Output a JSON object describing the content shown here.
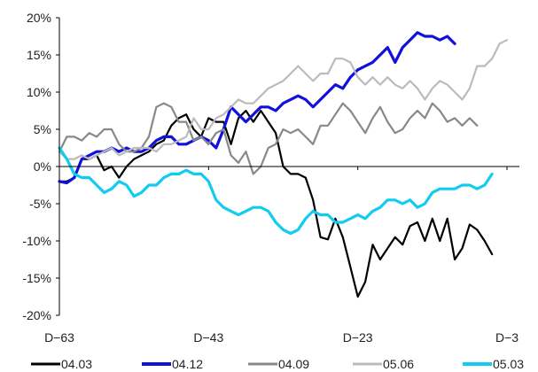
{
  "chart_data": {
    "type": "line",
    "title": "",
    "xlabel": "",
    "ylabel": "",
    "x_range": [
      -63,
      -3
    ],
    "x_ticks": [
      {
        "value": -63,
        "label": "D−63"
      },
      {
        "value": -43,
        "label": "D−43"
      },
      {
        "value": -23,
        "label": "D−23"
      },
      {
        "value": -3,
        "label": "D−3"
      }
    ],
    "ylim": [
      -20,
      20
    ],
    "y_ticks": [
      {
        "value": 20,
        "label": "20%"
      },
      {
        "value": 15,
        "label": "15%"
      },
      {
        "value": 10,
        "label": "10%"
      },
      {
        "value": 5,
        "label": "5%"
      },
      {
        "value": 0,
        "label": "0%"
      },
      {
        "value": -5,
        "label": "-5%"
      },
      {
        "value": -10,
        "label": "-10%"
      },
      {
        "value": -15,
        "label": "-15%"
      },
      {
        "value": -20,
        "label": "-20%"
      }
    ],
    "grid": false,
    "legend_position": "bottom",
    "series": [
      {
        "name": "04.03",
        "color": "#000000",
        "x": [
          -63,
          -62,
          -61,
          -60,
          -59,
          -58,
          -57,
          -56,
          -55,
          -54,
          -53,
          -52,
          -51,
          -50,
          -49,
          -48,
          -47,
          -46,
          -45,
          -44,
          -43,
          -42,
          -41,
          -40,
          -39,
          -38,
          -37,
          -36,
          -35,
          -34,
          -33,
          -32,
          -31,
          -30,
          -29,
          -28,
          -27,
          -26,
          -25,
          -24,
          -23,
          -22,
          -21,
          -20,
          -19,
          -18,
          -17,
          -16,
          -15,
          -14,
          -13,
          -12,
          -11,
          -10,
          -9,
          -8,
          -7,
          -6,
          -5,
          -4,
          -3
        ],
        "y": [
          -2,
          -2,
          -1.5,
          1,
          1,
          1.5,
          -0.5,
          0,
          -1.5,
          0,
          1,
          1.5,
          2,
          3,
          3.5,
          5.5,
          6.5,
          7,
          5,
          4,
          6.5,
          6,
          6,
          3,
          6.5,
          7.5,
          6,
          7.5,
          6,
          4.5,
          0,
          -1,
          -1,
          -1.5,
          -4.5,
          -9.5,
          -9.8,
          -7,
          -9.5,
          -13.5,
          -17.5,
          -15.5,
          -10.5,
          -12.5,
          -11,
          -9.5,
          -10.5,
          -8,
          -7.5,
          -10,
          -7,
          -10,
          -7,
          -12.5,
          -11,
          -7.8,
          -8.5,
          -10,
          -11.8,
          null,
          null
        ]
      },
      {
        "name": "04.12",
        "color": "#1111dd",
        "x": [
          -63,
          -62,
          -61,
          -60,
          -59,
          -58,
          -57,
          -56,
          -55,
          -54,
          -53,
          -52,
          -51,
          -50,
          -49,
          -48,
          -47,
          -46,
          -45,
          -44,
          -43,
          -42,
          -41,
          -40,
          -39,
          -38,
          -37,
          -36,
          -35,
          -34,
          -33,
          -32,
          -31,
          -30,
          -29,
          -28,
          -27,
          -26,
          -25,
          -24,
          -23,
          -22,
          -21,
          -20,
          -19,
          -18,
          -17,
          -16,
          -15,
          -14,
          -13,
          -12,
          -11,
          -10,
          -9,
          -8,
          -7,
          -6,
          -5,
          -4,
          -3
        ],
        "y": [
          -2,
          -2.2,
          -1.5,
          1,
          1.5,
          2,
          2,
          2.5,
          2,
          2.5,
          2,
          2,
          2.5,
          3.5,
          4,
          4,
          3,
          3,
          3.5,
          4,
          3.5,
          2.5,
          5,
          8,
          7,
          6,
          7,
          8,
          8,
          7.5,
          8.5,
          9,
          9.5,
          9,
          8,
          9,
          10,
          11,
          10.5,
          12,
          13,
          13.5,
          14,
          15,
          16,
          14,
          16,
          17,
          18,
          17.5,
          17.5,
          17,
          17.5,
          16.5,
          null,
          null,
          null,
          null,
          null,
          null,
          null
        ]
      },
      {
        "name": "04.09",
        "color": "#888888",
        "x": [
          -63,
          -62,
          -61,
          -60,
          -59,
          -58,
          -57,
          -56,
          -55,
          -54,
          -53,
          -52,
          -51,
          -50,
          -49,
          -48,
          -47,
          -46,
          -45,
          -44,
          -43,
          -42,
          -41,
          -40,
          -39,
          -38,
          -37,
          -36,
          -35,
          -34,
          -33,
          -32,
          -31,
          -30,
          -29,
          -28,
          -27,
          -26,
          -25,
          -24,
          -23,
          -22,
          -21,
          -20,
          -19,
          -18,
          -17,
          -16,
          -15,
          -14,
          -13,
          -12,
          -11,
          -10,
          -9,
          -8,
          -7,
          -6,
          -5,
          -4,
          -3
        ],
        "y": [
          2,
          4,
          4,
          3.5,
          4.5,
          4,
          5,
          5,
          3,
          2,
          2,
          2.5,
          4,
          8,
          8.5,
          8,
          6,
          6,
          3.5,
          4,
          3,
          4.5,
          5,
          1.5,
          0.5,
          2,
          -1,
          0,
          2.5,
          3,
          5,
          4.5,
          5,
          4,
          3,
          5.5,
          5.5,
          7,
          8.5,
          7.5,
          6,
          4.5,
          6.5,
          8,
          6,
          4.5,
          5,
          6.5,
          7.5,
          6.5,
          8.5,
          7.5,
          6,
          6.5,
          5.5,
          6.5,
          5.5,
          null,
          null,
          null,
          null
        ]
      },
      {
        "name": "05.06",
        "color": "#bbbbbb",
        "x": [
          -63,
          -62,
          -61,
          -60,
          -59,
          -58,
          -57,
          -56,
          -55,
          -54,
          -53,
          -52,
          -51,
          -50,
          -49,
          -48,
          -47,
          -46,
          -45,
          -44,
          -43,
          -42,
          -41,
          -40,
          -39,
          -38,
          -37,
          -36,
          -35,
          -34,
          -33,
          -32,
          -31,
          -30,
          -29,
          -28,
          -27,
          -26,
          -25,
          -24,
          -23,
          -22,
          -21,
          -20,
          -19,
          -18,
          -17,
          -16,
          -15,
          -14,
          -13,
          -12,
          -11,
          -10,
          -9,
          -8,
          -7,
          -6,
          -5,
          -4,
          -3
        ],
        "y": [
          2,
          1,
          1,
          1.5,
          1,
          1.5,
          2,
          2.5,
          1.5,
          2,
          2.5,
          2.5,
          2.5,
          2,
          3,
          3,
          3.5,
          4,
          6.5,
          5,
          5,
          6.5,
          7,
          8,
          9,
          8.5,
          8.5,
          9.5,
          10.5,
          11,
          11.5,
          12.5,
          13.5,
          12.5,
          11.5,
          12.5,
          12.5,
          14.5,
          14.5,
          14,
          12,
          11,
          12,
          11,
          12,
          11,
          10.5,
          11.5,
          10.5,
          9,
          10.5,
          11.5,
          11,
          10,
          9,
          10.5,
          13.5,
          13.5,
          14.5,
          16.5,
          17
        ]
      },
      {
        "name": "05.03",
        "color": "#11ccee",
        "x": [
          -63,
          -62,
          -61,
          -60,
          -59,
          -58,
          -57,
          -56,
          -55,
          -54,
          -53,
          -52,
          -51,
          -50,
          -49,
          -48,
          -47,
          -46,
          -45,
          -44,
          -43,
          -42,
          -41,
          -40,
          -39,
          -38,
          -37,
          -36,
          -35,
          -34,
          -33,
          -32,
          -31,
          -30,
          -29,
          -28,
          -27,
          -26,
          -25,
          -24,
          -23,
          -22,
          -21,
          -20,
          -19,
          -18,
          -17,
          -16,
          -15,
          -14,
          -13,
          -12,
          -11,
          -10,
          -9,
          -8,
          -7,
          -6,
          -5,
          -4,
          -3
        ],
        "y": [
          2.5,
          1,
          -1,
          -1.5,
          -1.5,
          -2.5,
          -3.5,
          -3,
          -2,
          -2.5,
          -4,
          -3.5,
          -2.5,
          -2.5,
          -1.5,
          -1,
          -1,
          -0.5,
          -1,
          -1,
          -2,
          -4.5,
          -5.5,
          -6,
          -6.5,
          -6,
          -5.5,
          -5.5,
          -6,
          -7.5,
          -8.5,
          -9,
          -8.5,
          -7,
          -6,
          -6.5,
          -6.5,
          -7.5,
          -7.5,
          -7,
          -6.5,
          -7,
          -6,
          -5.5,
          -4.5,
          -4.5,
          -5,
          -4.5,
          -5.5,
          -5,
          -3.5,
          -3,
          -3,
          -3,
          -2.5,
          -2.5,
          -3,
          -2.5,
          -1,
          null,
          null
        ]
      }
    ]
  }
}
